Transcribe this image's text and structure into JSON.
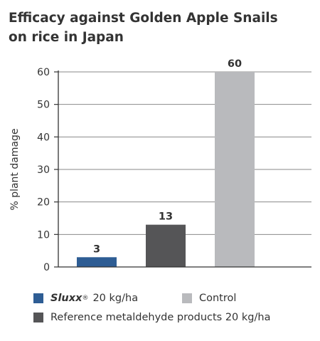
{
  "title_lines": [
    "Efficacy against Golden Apple Snails",
    "on rice in Japan"
  ],
  "legend": {
    "item1": {
      "brand": "Sluxx",
      "reg": "®",
      "dose": "20 kg/ha",
      "color": "#2e5d94"
    },
    "item2": {
      "label": "Control",
      "color": "#b9babd"
    },
    "item3": {
      "label": "Reference metaldehyde products 20 kg/ha",
      "color": "#555557"
    }
  },
  "chart_data": {
    "type": "bar",
    "title": "Efficacy against Golden Apple Snails on rice in Japan",
    "ylabel": "% plant damage",
    "xlabel": "",
    "ylim": [
      0,
      60
    ],
    "yticks": [
      0,
      10,
      20,
      30,
      40,
      50,
      60
    ],
    "grid": true,
    "legend_position": "bottom",
    "bars": [
      {
        "series": "Sluxx® 20 kg/ha",
        "value": 3,
        "label": "3",
        "color": "#2e5d94"
      },
      {
        "series": "Reference metaldehyde products 20 kg/ha",
        "value": 13,
        "label": "13",
        "color": "#555557"
      },
      {
        "series": "Control",
        "value": 60,
        "label": "60",
        "color": "#b9babd"
      }
    ]
  }
}
